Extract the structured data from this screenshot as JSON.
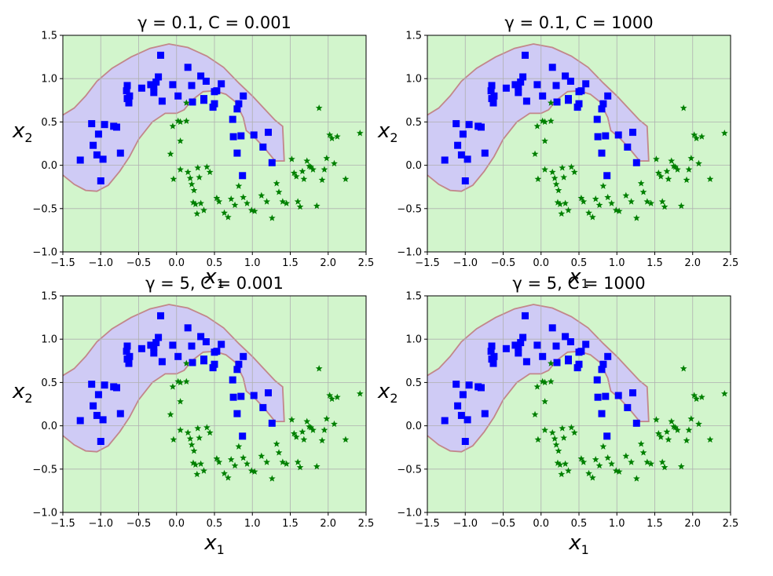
{
  "chart_data": {
    "type": "scatter",
    "layout": "2x2",
    "colors": {
      "background_region": "#d2f5cc",
      "positive_region": "#cfcbf5",
      "boundary": "#c2878a",
      "class_0": "#0000ff",
      "class_1": "#008000",
      "grid": "#b0b0b0"
    },
    "subplots": [
      {
        "title": "γ = 0.1, C = 0.001",
        "xlabel_math": "x",
        "xlabel_sub": "1",
        "ylabel_math": "x",
        "ylabel_sub": "2",
        "xlim": [
          -1.5,
          2.5
        ],
        "ylim": [
          -1.0,
          1.5
        ],
        "xticks": [
          "−1.5",
          "−1.0",
          "−0.5",
          "0.0",
          "0.5",
          "1.0",
          "1.5",
          "2.0",
          "2.5"
        ],
        "yticks": [
          "−1.0",
          "−0.5",
          "0.0",
          "0.5",
          "1.0",
          "1.5"
        ]
      },
      {
        "title": "γ = 0.1, C = 1000",
        "xlabel_math": "x",
        "xlabel_sub": "1",
        "ylabel_math": "x",
        "ylabel_sub": "2",
        "xlim": [
          -1.5,
          2.5
        ],
        "ylim": [
          -1.0,
          1.5
        ],
        "xticks": [
          "−1.5",
          "−1.0",
          "−0.5",
          "0.0",
          "0.5",
          "1.0",
          "1.5",
          "2.0",
          "2.5"
        ],
        "yticks": [
          "−1.0",
          "−0.5",
          "0.0",
          "0.5",
          "1.0",
          "1.5"
        ]
      },
      {
        "title": "γ = 5, C = 0.001",
        "xlabel_math": "x",
        "xlabel_sub": "1",
        "ylabel_math": "x",
        "ylabel_sub": "2",
        "xlim": [
          -1.5,
          2.5
        ],
        "ylim": [
          -1.0,
          1.5
        ],
        "xticks": [
          "−1.5",
          "−1.0",
          "−0.5",
          "0.0",
          "0.5",
          "1.0",
          "1.5",
          "2.0",
          "2.5"
        ],
        "yticks": [
          "−1.0",
          "−0.5",
          "0.0",
          "0.5",
          "1.0",
          "1.5"
        ]
      },
      {
        "title": "γ = 5, C = 1000",
        "xlabel_math": "x",
        "xlabel_sub": "1",
        "ylabel_math": "x",
        "ylabel_sub": "2",
        "xlim": [
          -1.5,
          2.5
        ],
        "ylim": [
          -1.0,
          1.5
        ],
        "xticks": [
          "−1.5",
          "−1.0",
          "−0.5",
          "0.0",
          "0.5",
          "1.0",
          "1.5",
          "2.0",
          "2.5"
        ],
        "yticks": [
          "−1.0",
          "−0.5",
          "0.0",
          "0.5",
          "1.0",
          "1.5"
        ]
      }
    ],
    "decision_boundary": [
      [
        -1.52,
        0.57
      ],
      [
        -1.35,
        0.66
      ],
      [
        -1.2,
        0.8
      ],
      [
        -1.05,
        0.97
      ],
      [
        -0.85,
        1.12
      ],
      [
        -0.6,
        1.25
      ],
      [
        -0.35,
        1.35
      ],
      [
        -0.1,
        1.4
      ],
      [
        0.15,
        1.36
      ],
      [
        0.4,
        1.26
      ],
      [
        0.62,
        1.13
      ],
      [
        0.82,
        0.95
      ],
      [
        1.0,
        0.8
      ],
      [
        1.15,
        0.66
      ],
      [
        1.3,
        0.52
      ],
      [
        1.4,
        0.45
      ],
      [
        1.42,
        0.05
      ],
      [
        1.3,
        0.05
      ],
      [
        1.15,
        0.21
      ],
      [
        1.02,
        0.33
      ],
      [
        0.92,
        0.4
      ],
      [
        0.88,
        0.55
      ],
      [
        0.78,
        0.73
      ],
      [
        0.65,
        0.82
      ],
      [
        0.5,
        0.86
      ],
      [
        0.35,
        0.85
      ],
      [
        0.2,
        0.75
      ],
      [
        0.1,
        0.64
      ],
      [
        0.0,
        0.6
      ],
      [
        -0.15,
        0.6
      ],
      [
        -0.32,
        0.5
      ],
      [
        -0.5,
        0.3
      ],
      [
        -0.62,
        0.1
      ],
      [
        -0.75,
        -0.07
      ],
      [
        -0.9,
        -0.23
      ],
      [
        -1.05,
        -0.3
      ],
      [
        -1.2,
        -0.29
      ],
      [
        -1.35,
        -0.22
      ],
      [
        -1.52,
        -0.1
      ]
    ],
    "class_0_points": [
      [
        -1.27,
        0.06
      ],
      [
        -1.12,
        0.48
      ],
      [
        -1.1,
        0.23
      ],
      [
        -1.05,
        0.12
      ],
      [
        -1.03,
        0.36
      ],
      [
        -1.0,
        -0.18
      ],
      [
        -0.97,
        0.07
      ],
      [
        -0.95,
        0.47
      ],
      [
        -0.83,
        0.45
      ],
      [
        -0.79,
        0.44
      ],
      [
        -0.74,
        0.14
      ],
      [
        -0.66,
        0.86
      ],
      [
        -0.65,
        0.92
      ],
      [
        -0.65,
        0.77
      ],
      [
        -0.63,
        0.72
      ],
      [
        -0.62,
        0.8
      ],
      [
        -0.46,
        0.89
      ],
      [
        -0.34,
        0.93
      ],
      [
        -0.3,
        0.84
      ],
      [
        -0.3,
        0.91
      ],
      [
        -0.27,
        0.96
      ],
      [
        -0.24,
        1.02
      ],
      [
        -0.21,
        1.27
      ],
      [
        -0.19,
        0.74
      ],
      [
        -0.05,
        0.93
      ],
      [
        0.02,
        0.8
      ],
      [
        0.15,
        1.13
      ],
      [
        0.2,
        0.92
      ],
      [
        0.21,
        0.73
      ],
      [
        0.32,
        1.03
      ],
      [
        0.36,
        0.77
      ],
      [
        0.36,
        0.75
      ],
      [
        0.39,
        0.97
      ],
      [
        0.48,
        0.67
      ],
      [
        0.5,
        0.71
      ],
      [
        0.5,
        0.85
      ],
      [
        0.53,
        0.86
      ],
      [
        0.59,
        0.94
      ],
      [
        0.74,
        0.53
      ],
      [
        0.75,
        0.33
      ],
      [
        0.8,
        0.65
      ],
      [
        0.8,
        0.14
      ],
      [
        0.82,
        0.71
      ],
      [
        0.85,
        0.34
      ],
      [
        0.88,
        0.8
      ],
      [
        0.87,
        -0.12
      ],
      [
        1.02,
        0.35
      ],
      [
        1.14,
        0.21
      ],
      [
        1.21,
        0.38
      ],
      [
        1.26,
        0.03
      ]
    ],
    "class_1_points": [
      [
        -0.05,
        0.45
      ],
      [
        -0.08,
        0.13
      ],
      [
        -0.04,
        -0.16
      ],
      [
        0.02,
        0.51
      ],
      [
        0.05,
        0.5
      ],
      [
        0.05,
        0.28
      ],
      [
        0.05,
        -0.05
      ],
      [
        0.13,
        0.72
      ],
      [
        0.13,
        0.51
      ],
      [
        0.15,
        -0.08
      ],
      [
        0.18,
        -0.15
      ],
      [
        0.2,
        -0.22
      ],
      [
        0.22,
        -0.43
      ],
      [
        0.23,
        -0.29
      ],
      [
        0.25,
        -0.45
      ],
      [
        0.27,
        -0.56
      ],
      [
        0.28,
        -0.03
      ],
      [
        0.3,
        -0.14
      ],
      [
        0.32,
        -0.44
      ],
      [
        0.36,
        -0.52
      ],
      [
        0.4,
        -0.02
      ],
      [
        0.44,
        -0.08
      ],
      [
        0.53,
        -0.38
      ],
      [
        0.56,
        -0.42
      ],
      [
        0.63,
        -0.55
      ],
      [
        0.68,
        -0.6
      ],
      [
        0.72,
        -0.39
      ],
      [
        0.77,
        -0.46
      ],
      [
        0.82,
        -0.24
      ],
      [
        0.88,
        -0.37
      ],
      [
        0.93,
        -0.44
      ],
      [
        0.99,
        -0.52
      ],
      [
        1.03,
        -0.53
      ],
      [
        1.12,
        -0.35
      ],
      [
        1.19,
        -0.42
      ],
      [
        1.26,
        -0.61
      ],
      [
        1.32,
        -0.21
      ],
      [
        1.35,
        -0.31
      ],
      [
        1.4,
        -0.42
      ],
      [
        1.45,
        -0.44
      ],
      [
        1.52,
        0.07
      ],
      [
        1.55,
        -0.09
      ],
      [
        1.58,
        -0.13
      ],
      [
        1.6,
        -0.42
      ],
      [
        1.63,
        -0.48
      ],
      [
        1.66,
        -0.07
      ],
      [
        1.68,
        -0.16
      ],
      [
        1.72,
        0.05
      ],
      [
        1.75,
        -0.01
      ],
      [
        1.77,
        -0.02
      ],
      [
        1.8,
        -0.05
      ],
      [
        1.85,
        -0.47
      ],
      [
        1.88,
        0.66
      ],
      [
        1.92,
        -0.17
      ],
      [
        1.95,
        -0.05
      ],
      [
        1.98,
        0.08
      ],
      [
        2.02,
        0.35
      ],
      [
        2.05,
        0.31
      ],
      [
        2.08,
        0.02
      ],
      [
        2.12,
        0.33
      ],
      [
        2.23,
        -0.16
      ],
      [
        2.42,
        0.37
      ]
    ]
  }
}
